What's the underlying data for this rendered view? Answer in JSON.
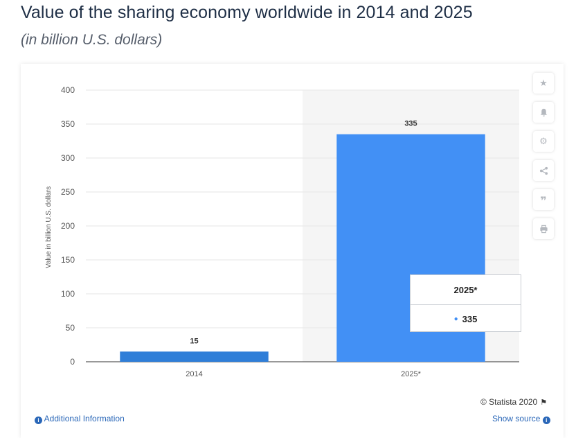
{
  "header": {
    "title": "Value of the sharing economy worldwide in 2014 and 2025",
    "subtitle": "(in billion U.S. dollars)"
  },
  "chart_data": {
    "type": "bar",
    "title": "Value of the sharing economy worldwide in 2014 and 2025",
    "subtitle": "(in billion U.S. dollars)",
    "categories": [
      "2014",
      "2025*"
    ],
    "series": [
      {
        "name": "",
        "values": [
          15,
          335
        ],
        "colors": [
          "#2f7ed8",
          "#4290f5"
        ]
      }
    ],
    "data_labels": [
      "15",
      "335"
    ],
    "xlabel": "",
    "ylabel": "Value in billion U.S. dollars",
    "ylim": [
      0,
      400
    ],
    "yticks": [
      0,
      50,
      100,
      150,
      200,
      250,
      300,
      350,
      400
    ],
    "ytick_labels": [
      "0",
      "50",
      "100",
      "150",
      "200",
      "250",
      "300",
      "350",
      "400"
    ],
    "grid": true,
    "legend": "none",
    "highlighted_category": "2025*"
  },
  "tooltip": {
    "category": "2025*",
    "value": "335",
    "marker_color": "#4290f5"
  },
  "toolbar": {
    "icons": [
      "star-icon",
      "bell-icon",
      "gear-icon",
      "share-icon",
      "quote-icon",
      "print-icon"
    ]
  },
  "credit": {
    "text": "© Statista 2020"
  },
  "footer": {
    "additional_info": "Additional Information",
    "show_source": "Show source"
  },
  "colors": {
    "bar": "#2f7ed8",
    "bar_highlight": "#4290f5",
    "link": "#2a67b8",
    "title": "#1f2f46"
  }
}
